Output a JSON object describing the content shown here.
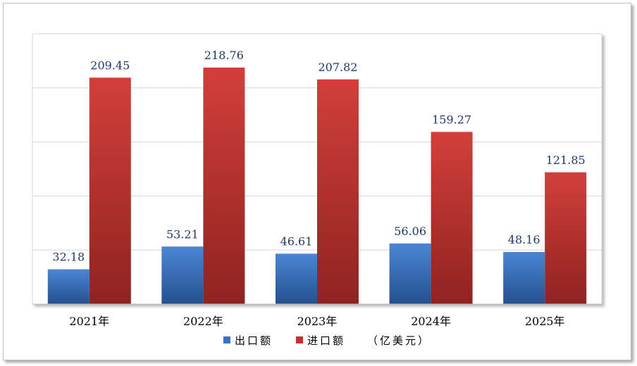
{
  "chart_data": {
    "type": "bar",
    "categories": [
      "2021年",
      "2022年",
      "2023年",
      "2024年",
      "2025年"
    ],
    "series": [
      {
        "name": "出口额",
        "values": [
          32.18,
          53.21,
          46.61,
          56.06,
          48.16
        ],
        "color": "#3a73c2"
      },
      {
        "name": "进口额",
        "values": [
          209.45,
          218.76,
          207.82,
          159.27,
          121.85
        ],
        "color": "#c0332f"
      }
    ],
    "unit_note": "（亿美元）",
    "ylim": [
      0,
      250
    ],
    "grid": true,
    "legend": "bottom",
    "data_labels": true
  }
}
